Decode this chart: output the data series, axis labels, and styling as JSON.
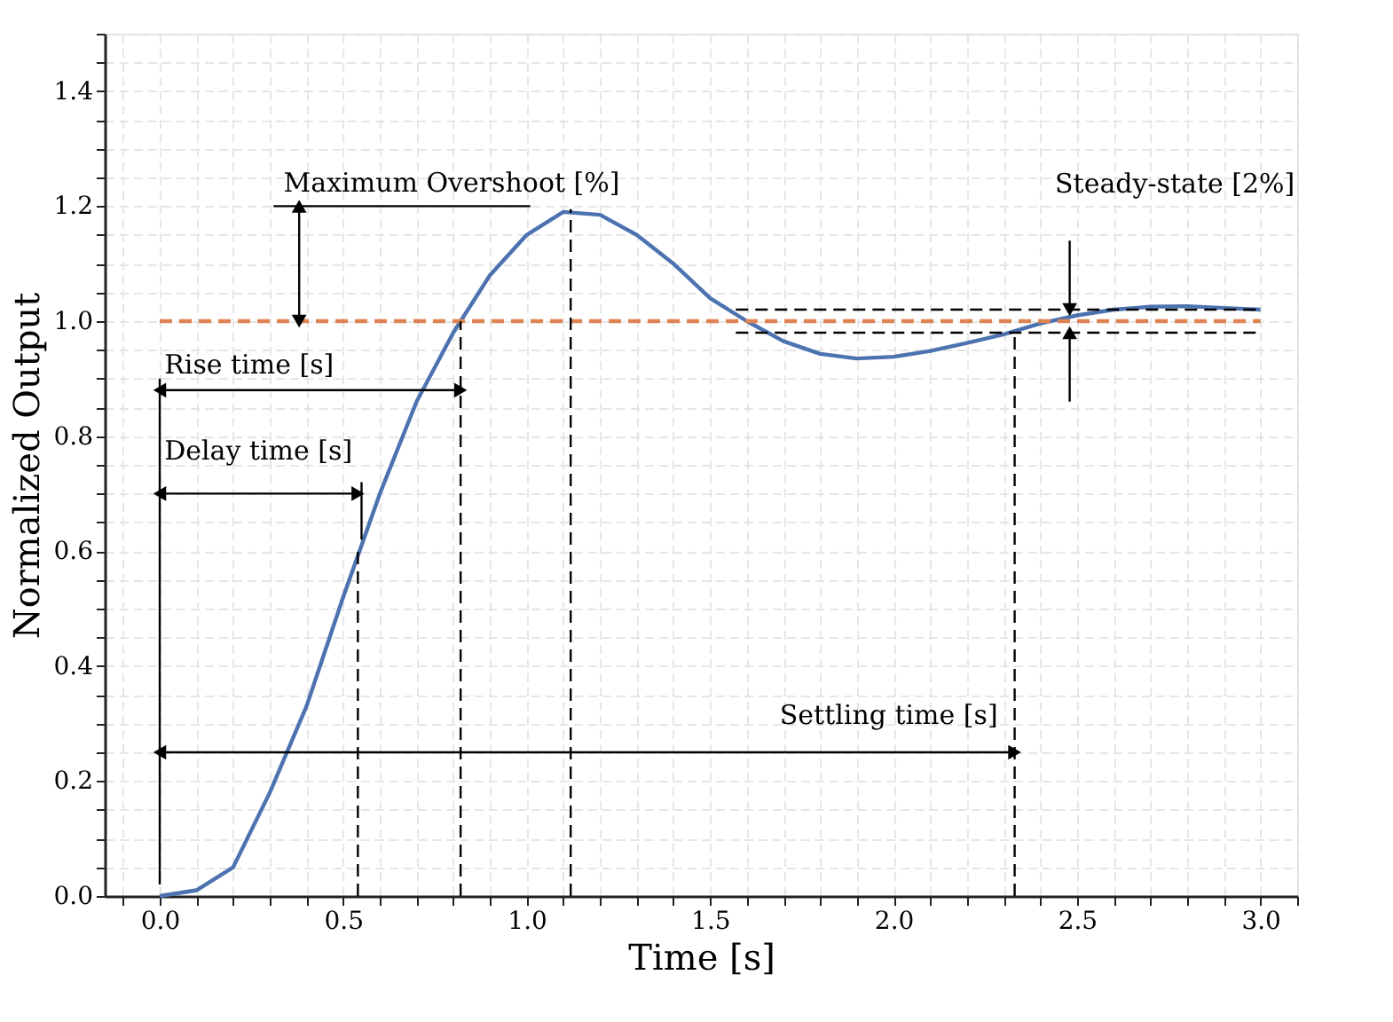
{
  "chart_data": {
    "type": "line",
    "xlabel": "Time [s]",
    "ylabel": "Normalized Output",
    "grid": true,
    "xlim": [
      -0.15,
      3.1
    ],
    "ylim": [
      0,
      1.5
    ],
    "xticks": [
      {
        "value": 0,
        "label": "0.0"
      },
      {
        "value": 0.1,
        "label": null
      },
      {
        "value": 0.2,
        "label": null
      },
      {
        "value": 0.3,
        "label": null
      },
      {
        "value": 0.4,
        "label": null
      },
      0.5,
      {
        "value": 0.6,
        "label": null
      },
      {
        "value": 0.7,
        "label": null
      },
      {
        "value": 0.8,
        "label": null
      },
      {
        "value": 0.9,
        "label": null
      },
      {
        "value": 1,
        "label": "1.0"
      },
      {
        "value": 1.1,
        "label": null
      },
      {
        "value": 1.2,
        "label": null
      },
      {
        "value": 1.3,
        "label": null
      },
      {
        "value": 1.4,
        "label": null
      },
      1.5,
      {
        "value": 1.6,
        "label": null
      },
      {
        "value": 1.7,
        "label": null
      },
      {
        "value": 1.8,
        "label": null
      },
      {
        "value": 1.9,
        "label": null
      },
      {
        "value": 2,
        "label": "2.0"
      },
      {
        "value": 2.1,
        "label": null
      },
      {
        "value": 2.2,
        "label": null
      },
      {
        "value": 2.3,
        "label": null
      },
      {
        "value": 2.4,
        "label": null
      },
      2.5,
      {
        "value": 2.6,
        "label": null
      },
      {
        "value": 2.7,
        "label": null
      },
      {
        "value": 2.8,
        "label": null
      },
      {
        "value": 2.9,
        "label": null
      },
      {
        "value": 3,
        "label": "3.0"
      },
      {
        "value": -0.1,
        "label": null
      },
      {
        "value": 3.1,
        "label": null
      }
    ],
    "yticks": [
      {
        "value": 0,
        "label": "0.0"
      },
      {
        "value": 0.05,
        "label": null
      },
      {
        "value": 0.1,
        "label": null
      },
      {
        "value": 0.15,
        "label": null
      },
      0.2,
      {
        "value": 0.25,
        "label": null
      },
      {
        "value": 0.3,
        "label": null
      },
      {
        "value": 0.35,
        "label": null
      },
      0.4,
      {
        "value": 0.45,
        "label": null
      },
      {
        "value": 0.5,
        "label": null
      },
      {
        "value": 0.55,
        "label": null
      },
      0.6,
      {
        "value": 0.65,
        "label": null
      },
      {
        "value": 0.7,
        "label": null
      },
      {
        "value": 0.75,
        "label": null
      },
      0.8,
      {
        "value": 0.85,
        "label": null
      },
      {
        "value": 0.9,
        "label": null
      },
      {
        "value": 0.95,
        "label": null
      },
      {
        "value": 1,
        "label": "1.0"
      },
      {
        "value": 1.05,
        "label": null
      },
      {
        "value": 1.1,
        "label": null
      },
      {
        "value": 1.15,
        "label": null
      },
      1.2,
      {
        "value": 1.25,
        "label": null
      },
      {
        "value": 1.3,
        "label": null
      },
      {
        "value": 1.35,
        "label": null
      },
      1.4,
      {
        "value": 1.45,
        "label": null
      },
      {
        "value": 1.5,
        "label": null
      }
    ],
    "series": [
      {
        "color": "#4c72b0",
        "line_style": "solid",
        "x": [
          0,
          0.1,
          0.2,
          0.3,
          0.4,
          0.5,
          0.6,
          0.7,
          0.8,
          0.9,
          1.0,
          1.1,
          1.2,
          1.3,
          1.4,
          1.5,
          1.6,
          1.7,
          1.8,
          1.9,
          2.0,
          2.1,
          2.2,
          2.3,
          2.4,
          2.5,
          2.6,
          2.7,
          2.8,
          2.9,
          3.0
        ],
        "values": [
          0,
          0.01,
          0.05,
          0.18,
          0.33,
          0.52,
          0.7,
          0.86,
          0.98,
          1.08,
          1.15,
          1.19,
          1.185,
          1.15,
          1.1,
          1.04,
          1.0,
          0.965,
          0.943,
          0.935,
          0.938,
          0.948,
          0.962,
          0.977,
          0.996,
          1.01,
          1.02,
          1.025,
          1.026,
          1.023,
          1.02
        ]
      },
      {
        "color": "#dd8452",
        "line_style": "dashed",
        "x": [
          0,
          3
        ],
        "values": [
          1,
          1
        ]
      },
      {
        "color": "#000000",
        "line_style": "dashed",
        "x": [
          0.54,
          0.54
        ],
        "values": [
          0,
          0.61
        ]
      },
      {
        "color": "#000000",
        "line_style": "dashed",
        "x": [
          0.82,
          0.82
        ],
        "values": [
          0,
          1.0
        ]
      },
      {
        "color": "#000000",
        "line_style": "dashed",
        "x": [
          1.12,
          1.12
        ],
        "values": [
          0,
          1.195
        ]
      },
      {
        "color": "#000000",
        "line_style": "dashed",
        "x": [
          2.33,
          2.33
        ],
        "values": [
          0,
          0.98
        ]
      },
      {
        "color": "#000000",
        "line_style": "dashed",
        "x": [
          1.57,
          3.0
        ],
        "values": [
          1.02,
          1.02
        ]
      },
      {
        "color": "#000000",
        "line_style": "dashed",
        "x": [
          1.57,
          3.0
        ],
        "values": [
          0.98,
          0.98
        ]
      },
      {
        "color": "#000000",
        "line_style": "solid",
        "x": [
          0,
          0
        ],
        "values": [
          0.02,
          0.9
        ]
      },
      {
        "color": "#000000",
        "line_style": "solid",
        "x": [
          0.55,
          0.55
        ],
        "values": [
          0.62,
          0.72
        ]
      },
      {
        "color": "#000000",
        "line_style": "solid",
        "x": [
          0.31,
          1.01
        ],
        "values": [
          1.2,
          1.2
        ]
      },
      {
        "color": "#000000",
        "line_style": "solid",
        "marker": "triangle",
        "x": [
          0,
          0.41,
          0.82
        ],
        "values": [
          0.88,
          0.88,
          0.88
        ]
      },
      {
        "color": "#000000",
        "line_style": "solid",
        "marker": "triangle",
        "x": [
          0,
          0.27,
          0.54
        ],
        "values": [
          0.7,
          0.7,
          0.7
        ]
      },
      {
        "color": "#000000",
        "line_style": "solid",
        "marker": "triangle",
        "x": [
          0,
          1.16,
          2.33
        ],
        "values": [
          0.25,
          0.25,
          0.25
        ]
      },
      {
        "color": "#000000",
        "line_style": "solid",
        "marker": "triangle",
        "x": [
          0.38,
          0.38,
          0.38
        ],
        "values": [
          1.0,
          1.1,
          1.2
        ]
      },
      {
        "color": "#000000",
        "line_style": "solid",
        "marker": "triangle",
        "x": [
          2.48,
          2.48
        ],
        "values": [
          1.14,
          1.02
        ]
      },
      {
        "color": "#000000",
        "line_style": "solid",
        "marker": "triangle",
        "x": [
          2.48,
          2.48
        ],
        "values": [
          0.86,
          0.98
        ]
      }
    ],
    "annotations": [
      "Maximum Overshoot [%]",
      "Rise time [s]",
      "Delay time [s]",
      "Settling time [s]",
      "Steady-state [2%]"
    ]
  }
}
